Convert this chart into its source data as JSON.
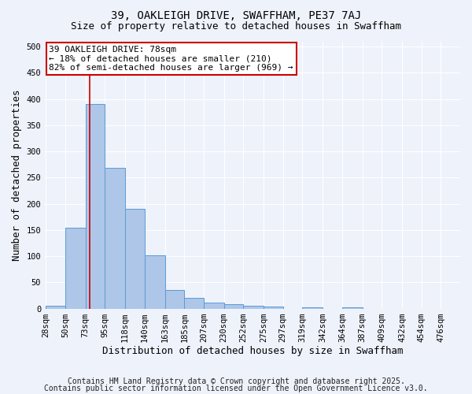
{
  "title1": "39, OAKLEIGH DRIVE, SWAFFHAM, PE37 7AJ",
  "title2": "Size of property relative to detached houses in Swaffham",
  "xlabel": "Distribution of detached houses by size in Swaffham",
  "ylabel": "Number of detached properties",
  "bin_labels": [
    "28sqm",
    "50sqm",
    "73sqm",
    "95sqm",
    "118sqm",
    "140sqm",
    "163sqm",
    "185sqm",
    "207sqm",
    "230sqm",
    "252sqm",
    "275sqm",
    "297sqm",
    "319sqm",
    "342sqm",
    "364sqm",
    "387sqm",
    "409sqm",
    "432sqm",
    "454sqm",
    "476sqm"
  ],
  "bin_edges": [
    28,
    50,
    73,
    95,
    118,
    140,
    163,
    185,
    207,
    230,
    252,
    275,
    297,
    319,
    342,
    364,
    387,
    409,
    432,
    454,
    476
  ],
  "bar_values": [
    5,
    155,
    390,
    268,
    190,
    102,
    35,
    20,
    11,
    8,
    5,
    4,
    0,
    2,
    0,
    3,
    0,
    0,
    0,
    0,
    0
  ],
  "bar_color": "#aec6e8",
  "bar_edge_color": "#5b9bd5",
  "property_size": 78,
  "red_line_color": "#cc0000",
  "annotation_text": "39 OAKLEIGH DRIVE: 78sqm\n← 18% of detached houses are smaller (210)\n82% of semi-detached houses are larger (969) →",
  "annotation_box_color": "#ffffff",
  "annotation_box_edge": "#cc0000",
  "footer1": "Contains HM Land Registry data © Crown copyright and database right 2025.",
  "footer2": "Contains public sector information licensed under the Open Government Licence v3.0.",
  "background_color": "#eef2fb",
  "ylim": [
    0,
    510
  ],
  "grid_color": "#ffffff",
  "title_fontsize": 10,
  "subtitle_fontsize": 9,
  "axis_label_fontsize": 9,
  "tick_fontsize": 7.5,
  "annotation_fontsize": 8,
  "footer_fontsize": 7
}
